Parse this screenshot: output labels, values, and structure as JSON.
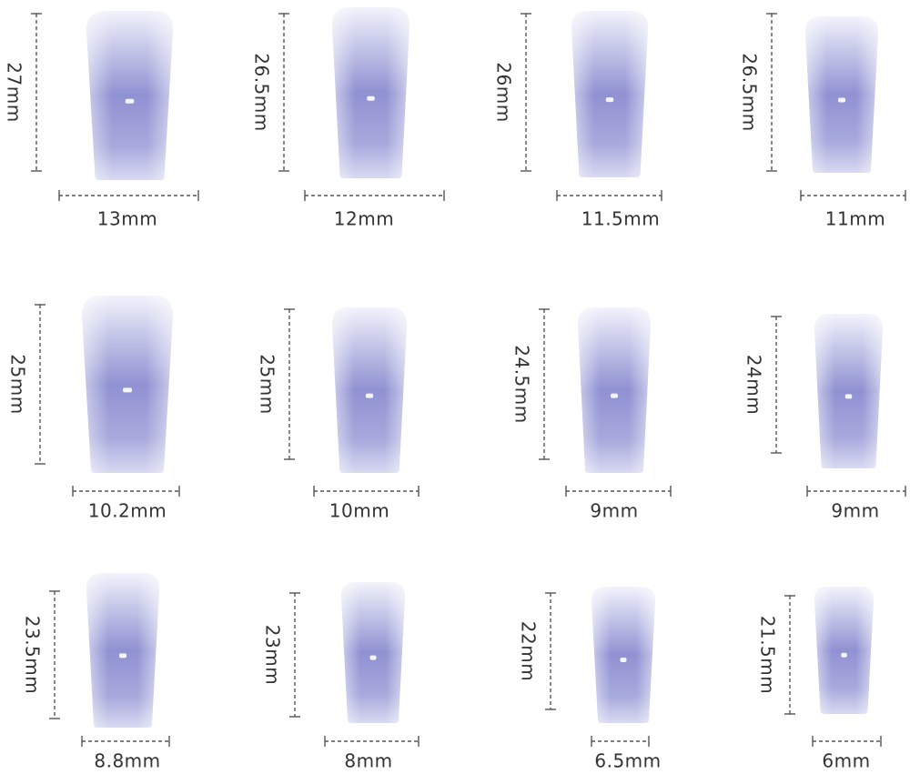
{
  "nails": [
    {
      "height": "27mm",
      "width": "13mm"
    },
    {
      "height": "26.5mm",
      "width": "12mm"
    },
    {
      "height": "26mm",
      "width": "11.5mm"
    },
    {
      "height": "26.5mm",
      "width": "11mm"
    },
    {
      "height": "25mm",
      "width": "10.2mm"
    },
    {
      "height": "25mm",
      "width": "10mm"
    },
    {
      "height": "24.5mm",
      "width": "9mm"
    },
    {
      "height": "24mm",
      "width": "9mm"
    },
    {
      "height": "23.5mm",
      "width": "8.8mm"
    },
    {
      "height": "23mm",
      "width": "8mm"
    },
    {
      "height": "22mm",
      "width": "6.5mm"
    },
    {
      "height": "21.5mm",
      "width": "6mm"
    }
  ]
}
